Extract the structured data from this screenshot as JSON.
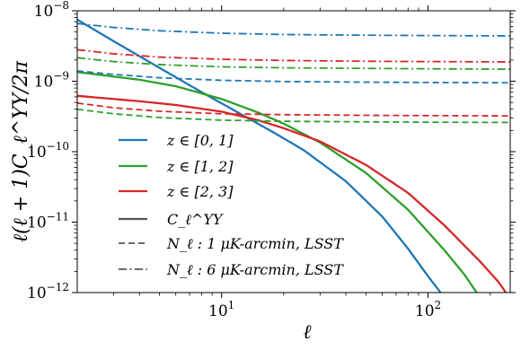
{
  "chart_data": {
    "type": "line",
    "xscale": "log",
    "yscale": "log",
    "xlim": [
      2,
      250
    ],
    "ylim": [
      1e-12,
      1e-08
    ],
    "xlabel": "ℓ",
    "ylabel": "ℓ(ℓ + 1)C_ℓ^ΥΥ/2π",
    "grid": false,
    "legend_placement": "lower-left",
    "x_ticks": [
      {
        "value": 10,
        "base": "10",
        "exp": "1"
      },
      {
        "value": 100,
        "base": "10",
        "exp": "2"
      }
    ],
    "y_ticks": [
      {
        "value": 1e-12,
        "base": "10",
        "exp": "−12"
      },
      {
        "value": 1e-11,
        "base": "10",
        "exp": "−11"
      },
      {
        "value": 1e-10,
        "base": "10",
        "exp": "−10"
      },
      {
        "value": 1e-09,
        "base": "10",
        "exp": "−9"
      },
      {
        "value": 1e-08,
        "base": "10",
        "exp": "−8"
      }
    ],
    "series": [
      {
        "legend": "z ∈ [0, 1]",
        "bin": "z ∈ [0, 1]",
        "kind": "signal",
        "color": "#1f77b4",
        "linestyle": "solid",
        "x": [
          2,
          3,
          5,
          8,
          12,
          18,
          25,
          40,
          60,
          80,
          100,
          115
        ],
        "y": [
          7.5e-09,
          3.7e-09,
          1.55e-09,
          7e-10,
          3.6e-10,
          1.85e-10,
          1.05e-10,
          3.8e-11,
          1.2e-11,
          4.2e-12,
          1.7e-12,
          1e-12
        ]
      },
      {
        "legend": "z ∈ [1, 2]",
        "bin": "z ∈ [1, 2]",
        "kind": "signal",
        "color": "#2ca02c",
        "linestyle": "solid",
        "x": [
          2,
          4,
          6,
          10,
          15,
          20,
          30,
          50,
          80,
          120,
          150,
          172
        ],
        "y": [
          1.35e-09,
          1.05e-09,
          8.5e-10,
          5.6e-10,
          3.6e-10,
          2.5e-10,
          1.35e-10,
          5e-11,
          1.5e-11,
          4e-12,
          1.8e-12,
          1e-12
        ]
      },
      {
        "legend": "z ∈ [2, 3]",
        "bin": "z ∈ [2, 3]",
        "kind": "signal",
        "color": "#d62728",
        "linestyle": "solid",
        "x": [
          2,
          4,
          6,
          10,
          15,
          20,
          30,
          50,
          80,
          120,
          180,
          220,
          238
        ],
        "y": [
          6.2e-10,
          5.2e-10,
          4.6e-10,
          3.7e-10,
          2.8e-10,
          2.15e-10,
          1.4e-10,
          6.5e-11,
          2.6e-11,
          9e-12,
          2.7e-12,
          1.4e-12,
          1e-12
        ]
      },
      {
        "bin": "z ∈ [0, 1]",
        "kind": "noise-1uK",
        "color": "#1f77b4",
        "linestyle": "dashed",
        "x": [
          2,
          3,
          5,
          10,
          20,
          50,
          100,
          250
        ],
        "y": [
          1.4e-09,
          1.25e-09,
          1.12e-09,
          1.03e-09,
          9.9e-10,
          9.7e-10,
          9.6e-10,
          9.5e-10
        ]
      },
      {
        "bin": "z ∈ [1, 2]",
        "kind": "noise-1uK",
        "color": "#2ca02c",
        "linestyle": "dashed",
        "x": [
          2,
          3,
          5,
          10,
          20,
          50,
          100,
          250
        ],
        "y": [
          4e-10,
          3.45e-10,
          3.05e-10,
          2.8e-10,
          2.7e-10,
          2.65e-10,
          2.62e-10,
          2.6e-10
        ]
      },
      {
        "bin": "z ∈ [2, 3]",
        "kind": "noise-1uK",
        "color": "#d62728",
        "linestyle": "dashed",
        "x": [
          2,
          3,
          5,
          10,
          20,
          50,
          100,
          250
        ],
        "y": [
          4.9e-10,
          4.2e-10,
          3.75e-10,
          3.45e-10,
          3.35e-10,
          3.28e-10,
          3.25e-10,
          3.22e-10
        ]
      },
      {
        "bin": "z ∈ [0, 1]",
        "kind": "noise-6uK",
        "color": "#1f77b4",
        "linestyle": "dashdot",
        "x": [
          2,
          3,
          5,
          10,
          20,
          50,
          100,
          250
        ],
        "y": [
          6.6e-09,
          5.8e-09,
          5.2e-09,
          4.8e-09,
          4.6e-09,
          4.5e-09,
          4.45e-09,
          4.4e-09
        ]
      },
      {
        "bin": "z ∈ [1, 2]",
        "kind": "noise-6uK",
        "color": "#2ca02c",
        "linestyle": "dashdot",
        "x": [
          2,
          3,
          5,
          10,
          20,
          50,
          100,
          250
        ],
        "y": [
          2.15e-09,
          1.9e-09,
          1.72e-09,
          1.6e-09,
          1.55e-09,
          1.52e-09,
          1.5e-09,
          1.48e-09
        ]
      },
      {
        "bin": "z ∈ [2, 3]",
        "kind": "noise-6uK",
        "color": "#d62728",
        "linestyle": "dashdot",
        "x": [
          2,
          3,
          5,
          10,
          20,
          50,
          100,
          250
        ],
        "y": [
          2.8e-09,
          2.45e-09,
          2.2e-09,
          2.05e-09,
          1.97e-09,
          1.92e-09,
          1.9e-09,
          1.88e-09
        ]
      }
    ],
    "legend": [
      {
        "label": "z ∈ [0, 1]",
        "color": "#1f77b4",
        "linestyle": "solid"
      },
      {
        "label": "z ∈ [1, 2]",
        "color": "#2ca02c",
        "linestyle": "solid"
      },
      {
        "label": "z ∈ [2, 3]",
        "color": "#d62728",
        "linestyle": "solid"
      },
      {
        "label": "C_ℓ^ΥΥ",
        "color": "#555555",
        "linestyle": "solid"
      },
      {
        "label": "N_ℓ : 1 μK-arcmin, LSST",
        "color": "#555555",
        "linestyle": "dashed"
      },
      {
        "label": "N_ℓ : 6 μK-arcmin, LSST",
        "color": "#555555",
        "linestyle": "dashdot"
      }
    ]
  }
}
